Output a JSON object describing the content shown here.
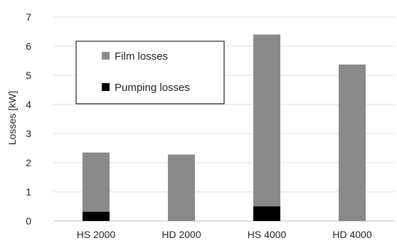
{
  "chart_data": {
    "type": "bar",
    "stacked": true,
    "categories": [
      "HS 2000",
      "HD 2000",
      "HS 4000",
      "HD 4000"
    ],
    "series": [
      {
        "name": "Pumping losses",
        "color": "#000000",
        "values": [
          0.32,
          0.0,
          0.5,
          0.0
        ]
      },
      {
        "name": "Film losses",
        "color": "#8a8a8a",
        "values": [
          2.03,
          2.28,
          5.9,
          5.37
        ]
      }
    ],
    "title": "",
    "xlabel": "",
    "ylabel": "Losses [kW]",
    "ylim": [
      0,
      7
    ],
    "yticks": [
      "0",
      "1",
      "2",
      "3",
      "4",
      "5",
      "6",
      "7"
    ],
    "grid": true,
    "legend": {
      "position": "top-left",
      "entries": [
        "Film losses",
        "Pumping losses"
      ]
    }
  }
}
